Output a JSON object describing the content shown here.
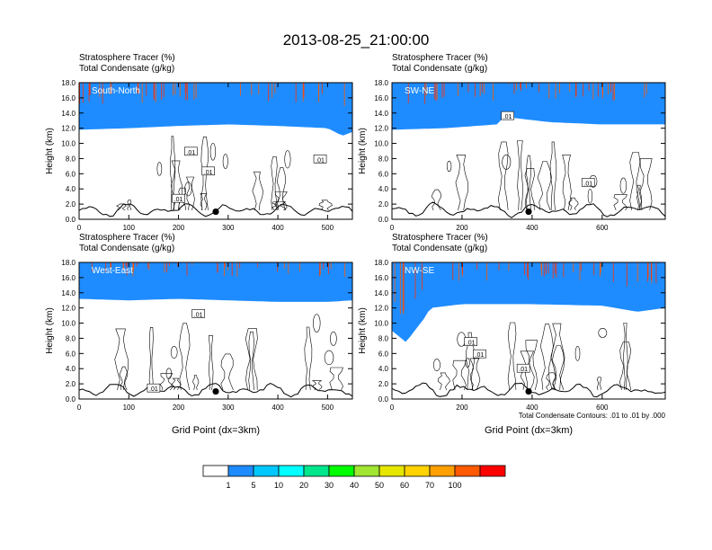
{
  "title": "2013-08-25_21:00:00",
  "header_line1": "Stratosphere Tracer   (%)",
  "header_line2": "Total Condensate   (g/kg)",
  "ylabel": "Height (km)",
  "xlabel": "Grid Point (dx=3km)",
  "contour_note": "Total Condensate Contours: .01 to .01 by .000",
  "contour_label": ".01",
  "colorbar": {
    "labels": [
      "1",
      "5",
      "10",
      "20",
      "30",
      "40",
      "50",
      "60",
      "70",
      "100"
    ],
    "colors": [
      "#ffffff",
      "#1e8cff",
      "#00c8ff",
      "#00ffff",
      "#00e68c",
      "#00ff00",
      "#a0e632",
      "#e6e600",
      "#ffd200",
      "#ffa000",
      "#ff5a00",
      "#ff0000"
    ]
  },
  "chart_data": [
    {
      "type": "heatmap",
      "panel": "South-North",
      "xlim": [
        0,
        550
      ],
      "ylim": [
        0,
        18
      ],
      "xticks": [
        "0",
        "100",
        "200",
        "300",
        "400",
        "500"
      ],
      "yticks": [
        "0.0",
        "2.0",
        "4.0",
        "6.0",
        "8.0",
        "10.0",
        "12.0",
        "14.0",
        "16.0",
        "18.0"
      ],
      "tropopause_km": {
        "x": [
          0,
          100,
          200,
          300,
          400,
          500,
          530,
          550
        ],
        "y": [
          11.8,
          12.0,
          12.3,
          12.5,
          12.3,
          12.0,
          11.0,
          11.5
        ]
      },
      "contour_labels_at": [
        [
          200,
          2.7
        ],
        [
          225,
          8.9
        ],
        [
          260,
          6.3
        ],
        [
          485,
          7.9
        ]
      ],
      "marker": {
        "x": 275,
        "y": 1.0
      }
    },
    {
      "type": "heatmap",
      "panel": "SW-NE",
      "xlim": [
        0,
        780
      ],
      "ylim": [
        0,
        18
      ],
      "xticks": [
        "0",
        "200",
        "400",
        "600"
      ],
      "yticks": [
        "0.0",
        "2.0",
        "4.0",
        "6.0",
        "8.0",
        "10.0",
        "12.0",
        "14.0",
        "16.0",
        "18.0"
      ],
      "tropopause_km": {
        "x": [
          0,
          150,
          300,
          320,
          450,
          600,
          780
        ],
        "y": [
          11.8,
          12.0,
          12.5,
          13.5,
          12.8,
          12.5,
          12.5
        ]
      },
      "contour_labels_at": [
        [
          330,
          13.6
        ],
        [
          560,
          4.8
        ]
      ],
      "marker": {
        "x": 390,
        "y": 1.0
      }
    },
    {
      "type": "heatmap",
      "panel": "West-East",
      "xlim": [
        0,
        550
      ],
      "ylim": [
        0,
        18
      ],
      "xticks": [
        "0",
        "100",
        "200",
        "300",
        "400",
        "500"
      ],
      "yticks": [
        "0.0",
        "2.0",
        "4.0",
        "6.0",
        "8.0",
        "10.0",
        "12.0",
        "14.0",
        "16.0",
        "18.0"
      ],
      "tropopause_km": {
        "x": [
          0,
          100,
          200,
          300,
          400,
          500,
          550
        ],
        "y": [
          13.2,
          13.0,
          13.2,
          13.0,
          12.8,
          12.8,
          13.0
        ]
      },
      "contour_labels_at": [
        [
          150,
          1.4
        ],
        [
          240,
          11.2
        ]
      ],
      "marker": {
        "x": 275,
        "y": 1.0
      }
    },
    {
      "type": "heatmap",
      "panel": "NW-SE",
      "xlim": [
        0,
        780
      ],
      "ylim": [
        0,
        18
      ],
      "xticks": [
        "0",
        "200",
        "400",
        "600"
      ],
      "yticks": [
        "0.0",
        "2.0",
        "4.0",
        "6.0",
        "8.0",
        "10.0",
        "12.0",
        "14.0",
        "16.0",
        "18.0"
      ],
      "tropopause_km": {
        "x": [
          0,
          40,
          90,
          110,
          200,
          400,
          600,
          700,
          780
        ],
        "y": [
          9.0,
          7.5,
          10.5,
          12.0,
          12.5,
          12.5,
          12.3,
          11.5,
          12.0
        ]
      },
      "contour_labels_at": [
        [
          225,
          7.5
        ],
        [
          250,
          5.9
        ],
        [
          375,
          4.0
        ]
      ],
      "marker": {
        "x": 390,
        "y": 1.0
      }
    }
  ]
}
